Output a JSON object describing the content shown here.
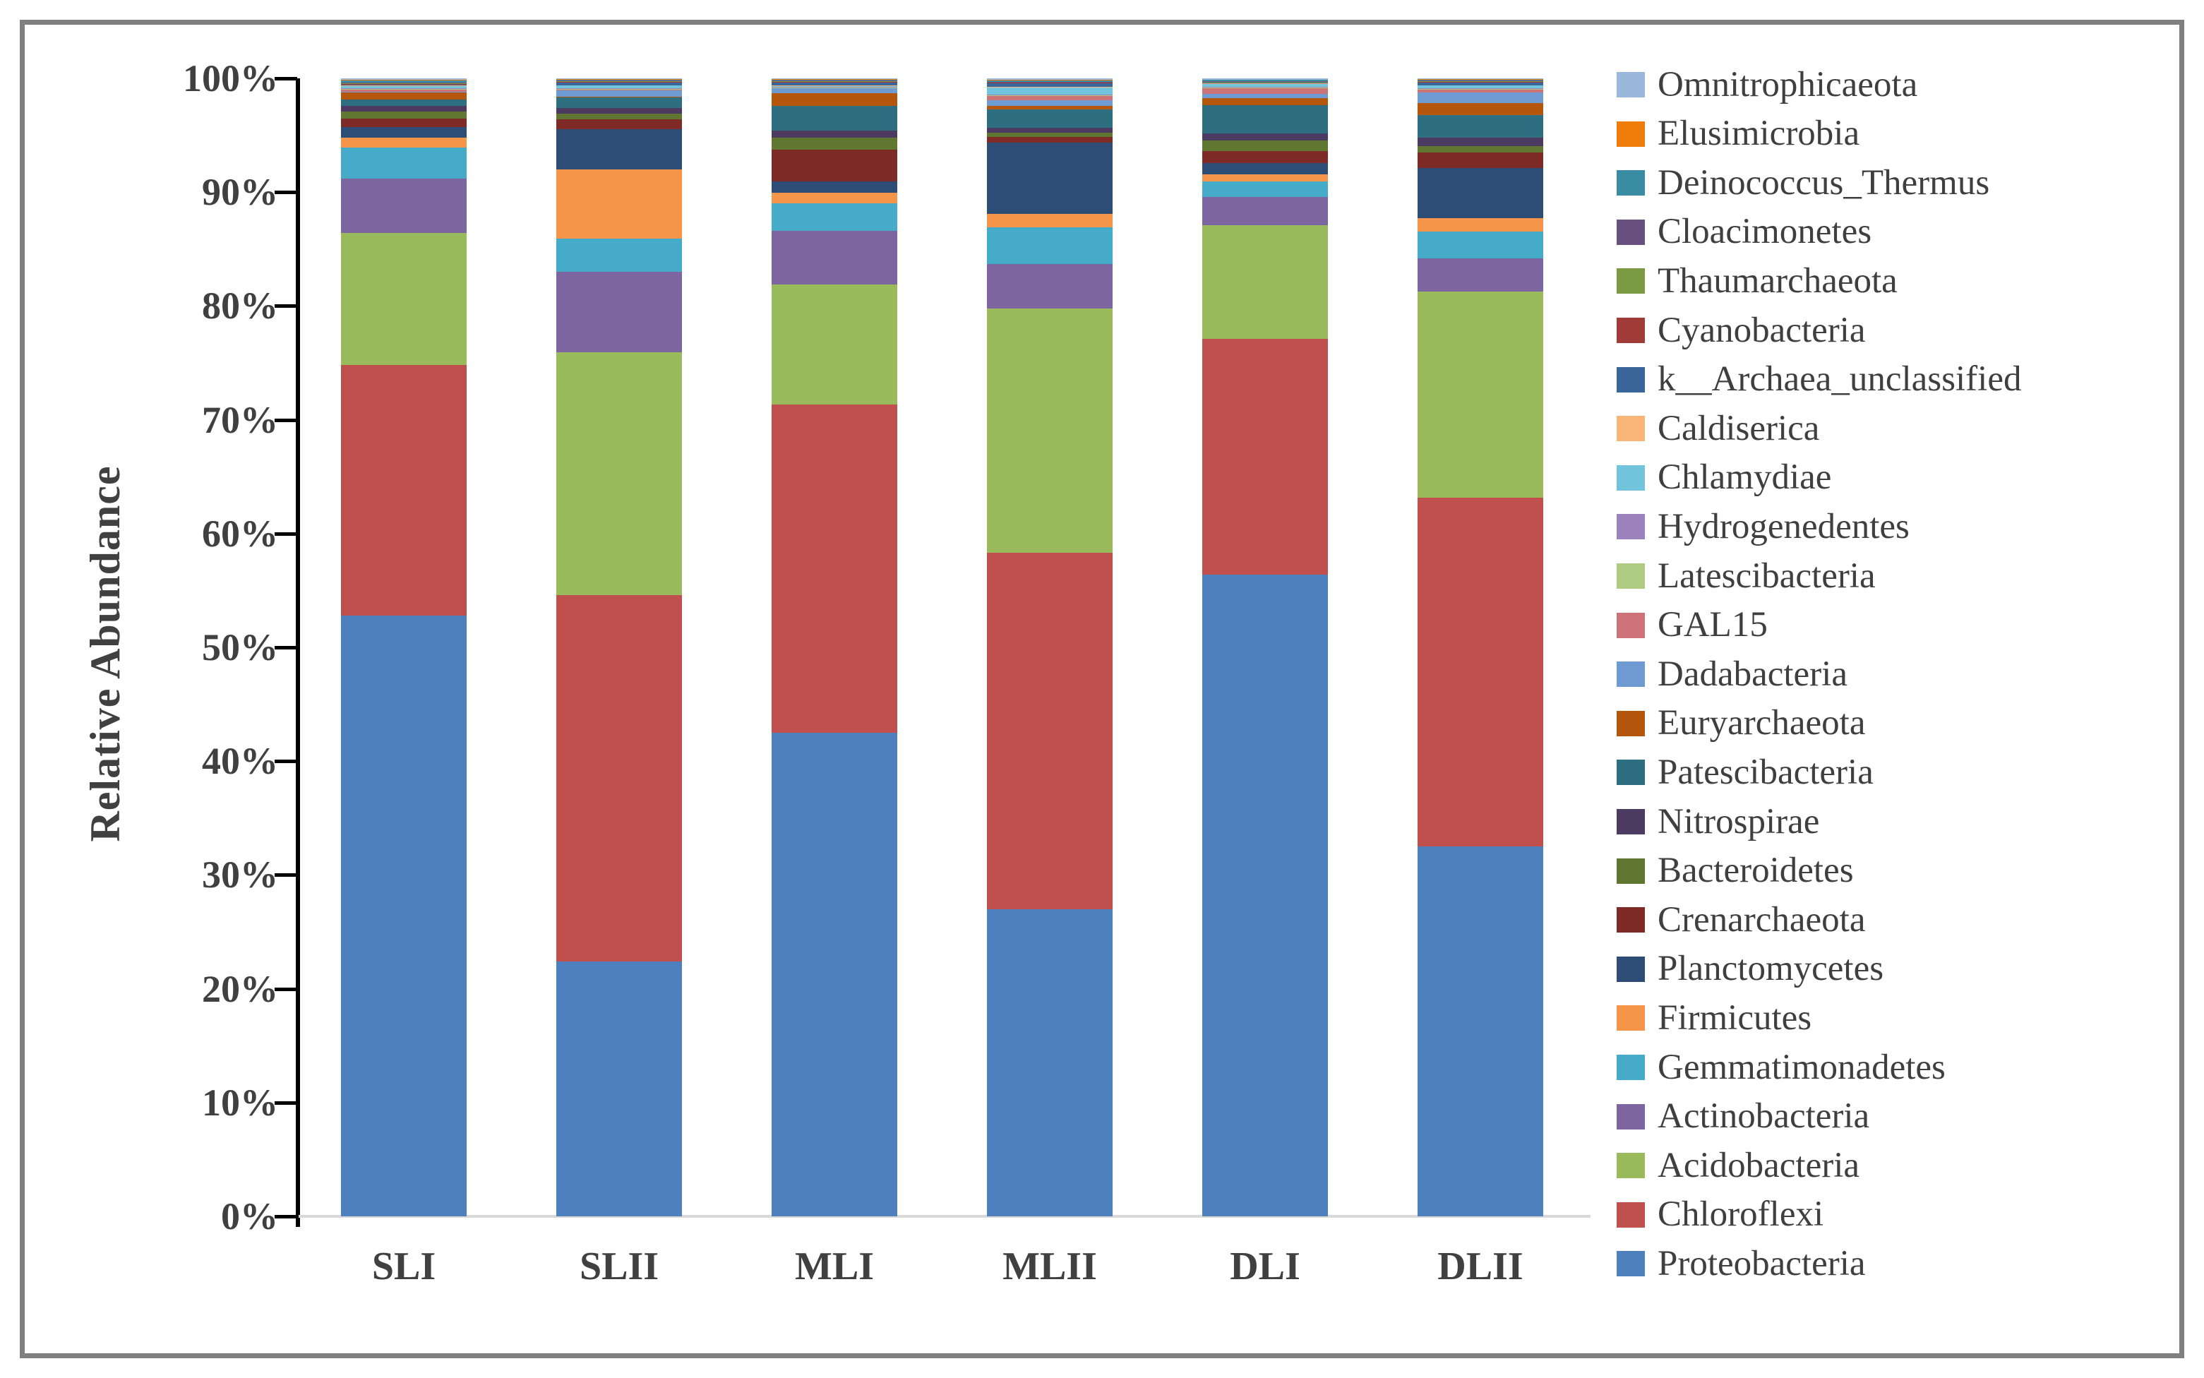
{
  "figure": {
    "border_color": "#7f7f7f",
    "background": "#ffffff",
    "text_color": "#404040"
  },
  "chart_data": {
    "type": "bar",
    "subtype": "stacked-100-percent-column",
    "title": "",
    "xlabel": "",
    "ylabel": "Relative Abundance",
    "ylim": [
      0,
      100
    ],
    "grid": false,
    "legend_position": "right",
    "y_tick_labels": [
      "0%",
      "10%",
      "20%",
      "30%",
      "40%",
      "50%",
      "60%",
      "70%",
      "80%",
      "90%",
      "100%"
    ],
    "categories": [
      "SLI",
      "SLII",
      "MLI",
      "MLII",
      "DLI",
      "DLII"
    ],
    "series": [
      {
        "name": "Omnitrophicaeota",
        "color": "#9ab8dc",
        "values": [
          0.15,
          0.05,
          0.05,
          0.15,
          0.1,
          0.05
        ]
      },
      {
        "name": "Elusimicrobia",
        "color": "#f07c0c",
        "values": [
          0.05,
          0.05,
          0.05,
          0.05,
          0.05,
          0.05
        ]
      },
      {
        "name": "Deinococcus_Thermus",
        "color": "#3a8ca3",
        "values": [
          0.2,
          0.1,
          0.1,
          0.1,
          0.1,
          0.1
        ]
      },
      {
        "name": "Cloacimonetes",
        "color": "#68517f",
        "values": [
          0.05,
          0.05,
          0.05,
          0.05,
          0.05,
          0.05
        ]
      },
      {
        "name": "Thaumarchaeota",
        "color": "#7b9a44",
        "values": [
          0.05,
          0.05,
          0.05,
          0.05,
          0.05,
          0.05
        ]
      },
      {
        "name": "Cyanobacteria",
        "color": "#a03b38",
        "values": [
          0.05,
          0.05,
          0.05,
          0.05,
          0.05,
          0.05
        ]
      },
      {
        "name": "k__Archaea_unclassified",
        "color": "#38659a",
        "values": [
          0.1,
          0.25,
          0.3,
          0.3,
          0.05,
          0.25
        ]
      },
      {
        "name": "Caldiserica",
        "color": "#f9b577",
        "values": [
          0.05,
          0.05,
          0.05,
          0.05,
          0.05,
          0.05
        ]
      },
      {
        "name": "Chlamydiae",
        "color": "#72c3dc",
        "values": [
          0.2,
          0.25,
          0.05,
          0.65,
          0.25,
          0.25
        ]
      },
      {
        "name": "Hydrogenedentes",
        "color": "#9b82bb",
        "values": [
          0.05,
          0.05,
          0.05,
          0.05,
          0.05,
          0.05
        ]
      },
      {
        "name": "Latescibacteria",
        "color": "#aecb82",
        "values": [
          0.05,
          0.05,
          0.05,
          0.05,
          0.05,
          0.05
        ]
      },
      {
        "name": "GAL15",
        "color": "#cd7277",
        "values": [
          0.2,
          0.05,
          0.05,
          0.4,
          0.5,
          0.25
        ]
      },
      {
        "name": "Dadabacteria",
        "color": "#6f9bd3",
        "values": [
          0.05,
          0.6,
          0.4,
          0.5,
          0.4,
          0.95
        ]
      },
      {
        "name": "Euryarchaeota",
        "color": "#b4560b",
        "values": [
          0.6,
          0.05,
          1.1,
          0.3,
          0.6,
          1.05
        ]
      },
      {
        "name": "Patescibacteria",
        "color": "#2d6e80",
        "values": [
          0.6,
          0.9,
          2.2,
          1.6,
          2.5,
          1.95
        ]
      },
      {
        "name": "Nitrospirae",
        "color": "#4c3a60",
        "values": [
          0.5,
          0.5,
          0.6,
          0.45,
          0.6,
          0.75
        ]
      },
      {
        "name": "Bacteroidetes",
        "color": "#5f7731",
        "values": [
          0.6,
          0.5,
          1.05,
          0.35,
          0.95,
          0.6
        ]
      },
      {
        "name": "Crenarchaeota",
        "color": "#7e2b27",
        "values": [
          0.75,
          0.9,
          2.8,
          0.5,
          1.05,
          1.35
        ]
      },
      {
        "name": "Planctomycetes",
        "color": "#2d4d76",
        "values": [
          0.9,
          3.5,
          1.0,
          6.25,
          1.0,
          4.4
        ]
      },
      {
        "name": "Firmicutes",
        "color": "#f6954a",
        "values": [
          0.9,
          6.1,
          0.95,
          1.2,
          0.6,
          1.15
        ]
      },
      {
        "name": "Gemmatimonadetes",
        "color": "#46abc9",
        "values": [
          2.7,
          2.9,
          2.4,
          3.25,
          1.4,
          2.4
        ]
      },
      {
        "name": "Actinobacteria",
        "color": "#7d65a0",
        "values": [
          4.8,
          7.1,
          4.75,
          3.9,
          2.45,
          2.9
        ]
      },
      {
        "name": "Acidobacteria",
        "color": "#99bb5c",
        "values": [
          11.6,
          21.3,
          10.5,
          21.45,
          10.0,
          18.1
        ]
      },
      {
        "name": "Chloroflexi",
        "color": "#c0504d",
        "values": [
          22.0,
          32.2,
          28.85,
          31.3,
          20.7,
          30.65
        ]
      },
      {
        "name": "Proteobacteria",
        "color": "#4e80bd",
        "values": [
          52.8,
          22.4,
          42.5,
          27.0,
          56.4,
          32.5
        ]
      }
    ]
  }
}
